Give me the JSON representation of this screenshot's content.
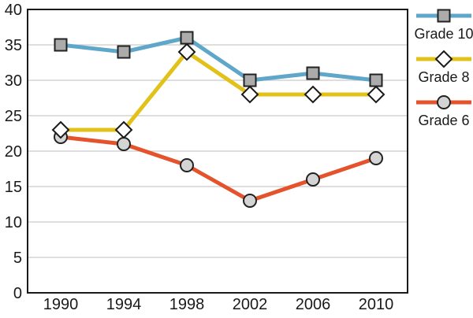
{
  "chart_data": {
    "type": "line",
    "title": "",
    "xlabel": "",
    "ylabel": "",
    "categories": [
      "1990",
      "1994",
      "1998",
      "2002",
      "2006",
      "2010"
    ],
    "series": [
      {
        "name": "Grade 10",
        "values": [
          35,
          34,
          36,
          30,
          31,
          30
        ],
        "line_color": "#5ea6ca",
        "marker": "square",
        "marker_fill": "#ababab",
        "marker_stroke": "#222222"
      },
      {
        "name": "Grade 8",
        "values": [
          23,
          23,
          34,
          28,
          28,
          28
        ],
        "line_color": "#e2c119",
        "marker": "diamond",
        "marker_fill": "#ffffff",
        "marker_stroke": "#1a1a1a"
      },
      {
        "name": "Grade 6",
        "values": [
          22,
          21,
          18,
          13,
          16,
          19
        ],
        "line_color": "#e4532b",
        "marker": "circle",
        "marker_fill": "#d4d4d4",
        "marker_stroke": "#222222"
      }
    ],
    "ylim": [
      0,
      40
    ],
    "ytick_step": 5,
    "ytick_labels": [
      "0",
      "5",
      "10",
      "15",
      "20",
      "25",
      "30",
      "35",
      "40"
    ],
    "grid": true,
    "gridline_color": "#c9c9c9",
    "axis_color": "#1a1a1a",
    "text_color": "#1a1a1a",
    "legend_position": "right",
    "draw_order": [
      "Grade 10",
      "Grade 6",
      "Grade 8"
    ]
  },
  "legend": {
    "items": [
      {
        "label": "Grade 10"
      },
      {
        "label": "Grade 8"
      },
      {
        "label": "Grade 6"
      }
    ]
  }
}
